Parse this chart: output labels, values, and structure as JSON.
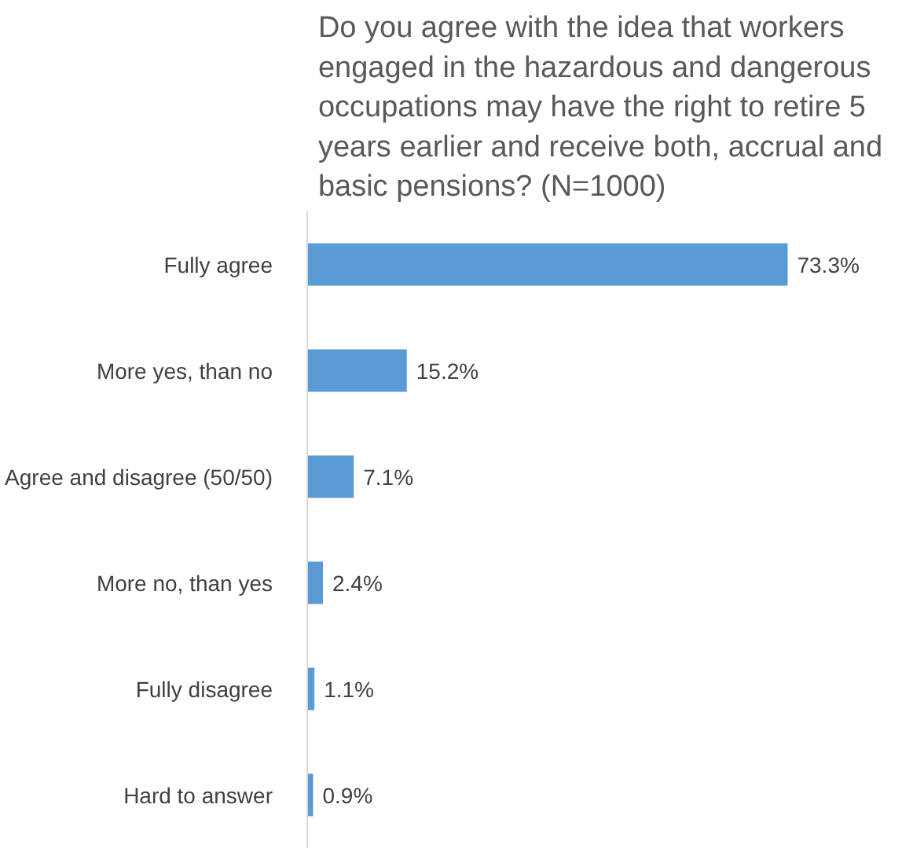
{
  "chart_data": {
    "type": "bar",
    "orientation": "horizontal",
    "title": "Do you agree with the idea that workers engaged in the hazardous and dangerous occupations may have the right to retire 5 years earlier and receive both, accrual and basic pensions? (N=1000)",
    "categories": [
      "Fully agree",
      "More yes, than no",
      "Agree and disagree (50/50)",
      "More no, than yes",
      "Fully disagree",
      "Hard to answer"
    ],
    "values": [
      73.3,
      15.2,
      7.1,
      2.4,
      1.1,
      0.9
    ],
    "value_labels": [
      "73.3%",
      "15.2%",
      "7.1%",
      "2.4%",
      "1.1%",
      "0.9%"
    ],
    "color": "#5b9bd5",
    "tick_labels": "y",
    "grid": false
  }
}
